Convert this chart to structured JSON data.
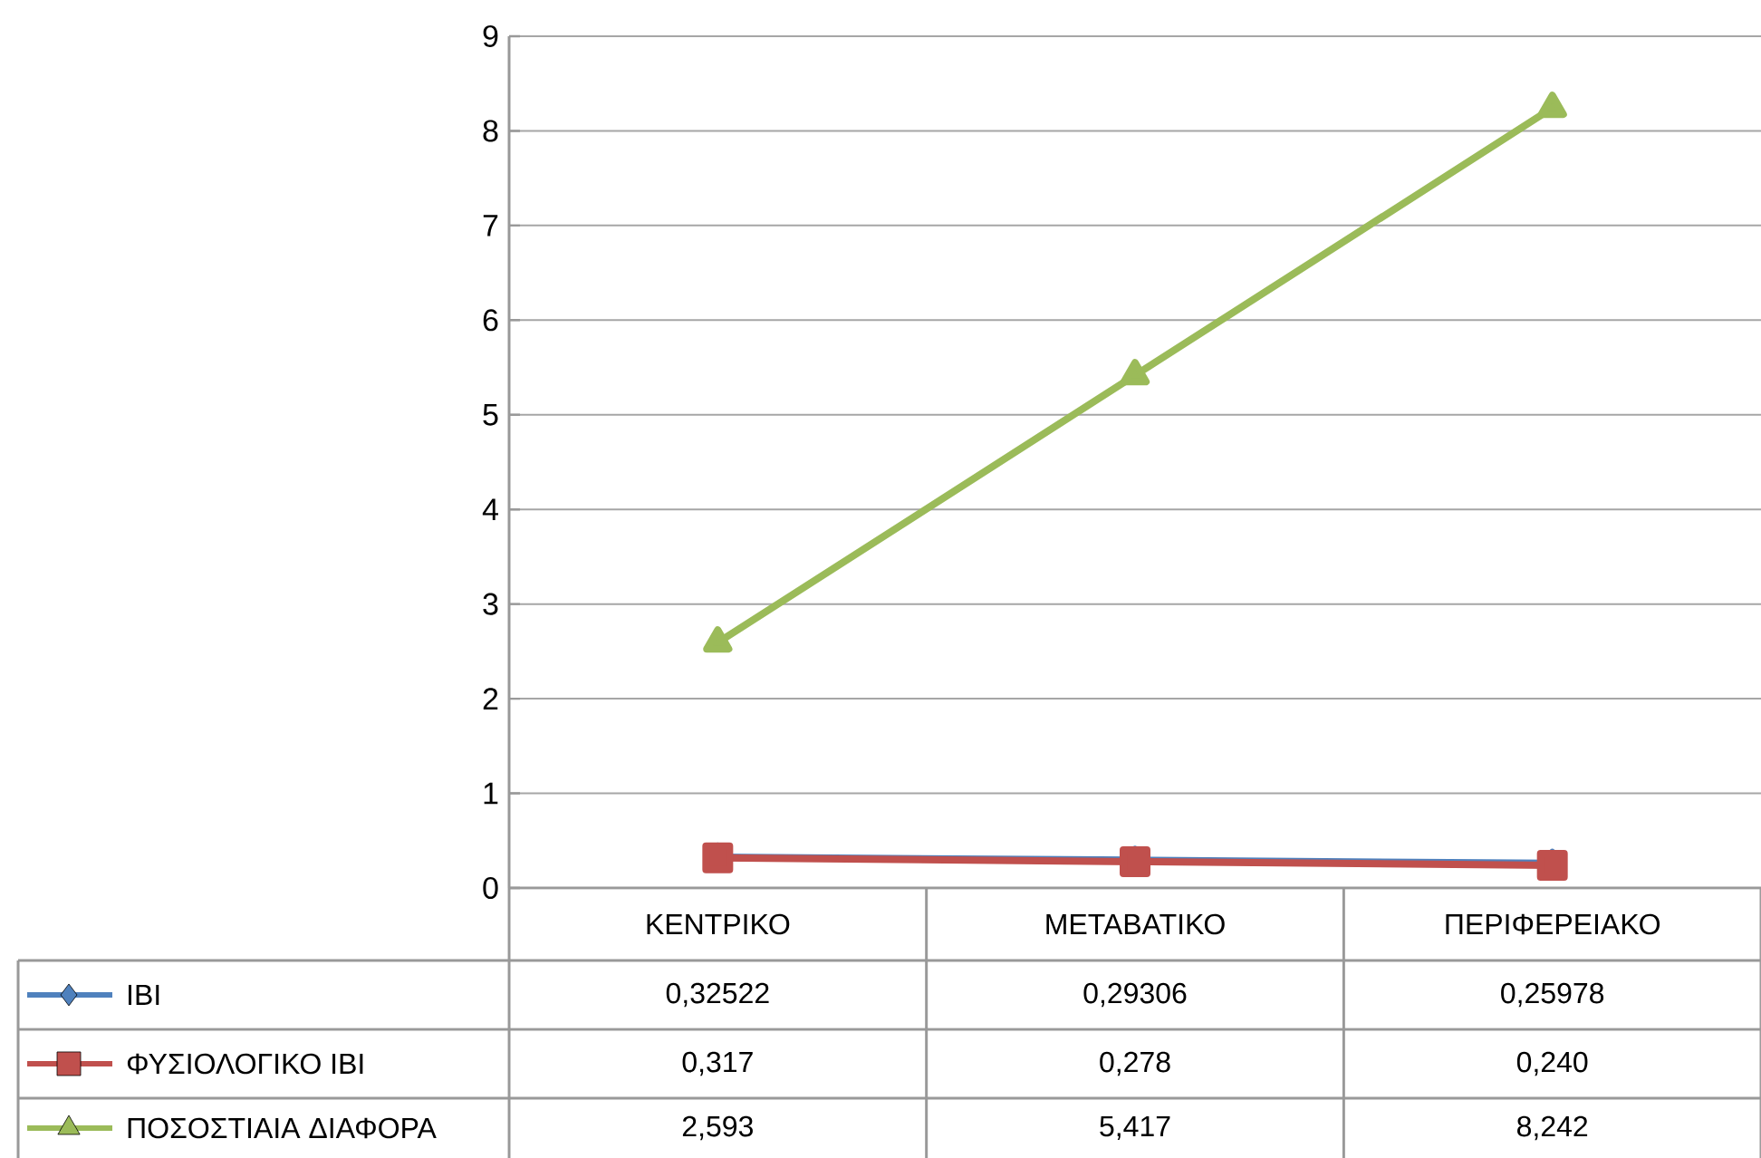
{
  "chart_data": {
    "type": "line",
    "categories": [
      "ΚΕΝΤΡΙΚΟ",
      "ΜΕΤΑΒΑΤΙΚΟ",
      "ΠΕΡΙΦΕΡΕΙΑΚΟ"
    ],
    "series": [
      {
        "name": "ΙΒΙ",
        "color": "#4f81bd",
        "marker": "diamond",
        "values": [
          0.32522,
          0.29306,
          0.25978
        ],
        "value_labels": [
          "0,32522",
          "0,29306",
          "0,25978"
        ]
      },
      {
        "name": "ΦΥΣΙΟΛΟΓΙΚΟ ΙΒΙ",
        "color": "#c0504d",
        "marker": "square",
        "values": [
          0.317,
          0.278,
          0.24
        ],
        "value_labels": [
          "0,317",
          "0,278",
          "0,240"
        ]
      },
      {
        "name": "ΠΟΣΟΣΤΙΑΙΑ ΔΙΑΦΟΡΑ",
        "color": "#9bbb59",
        "marker": "triangle",
        "values": [
          2.593,
          5.417,
          8.242
        ],
        "value_labels": [
          "2,593",
          "5,417",
          "8,242"
        ]
      }
    ],
    "ylim": [
      0,
      9
    ],
    "yticks": [
      0,
      1,
      2,
      3,
      4,
      5,
      6,
      7,
      8,
      9
    ],
    "grid": "y",
    "legend": "bottom",
    "line_style": "solid"
  }
}
